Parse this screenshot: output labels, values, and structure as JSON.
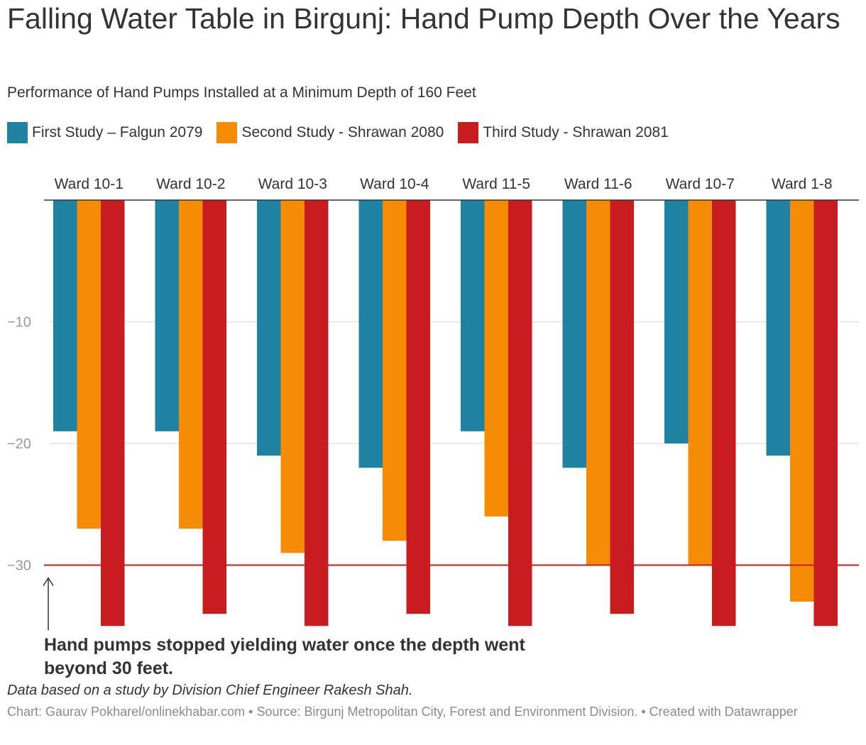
{
  "header": {
    "title": "Falling Water Table in Birgunj: Hand Pump Depth Over the Years",
    "subtitle": "Performance of Hand Pumps Installed at a Minimum Depth of 160 Feet"
  },
  "legend": [
    {
      "label": "First Study – Falgun 2079",
      "color": "#1f82a3"
    },
    {
      "label": "Second Study - Shrawan 2080",
      "color": "#f68b05"
    },
    {
      "label": "Third Study - Shrawan 2081",
      "color": "#c91c1f"
    }
  ],
  "chart_data": {
    "type": "bar",
    "categories": [
      "Ward 10-1",
      "Ward 10-2",
      "Ward 10-3",
      "Ward 10-4",
      "Ward 11-5",
      "Ward 11-6",
      "Ward 10-7",
      "Ward 1-8"
    ],
    "series": [
      {
        "name": "First Study – Falgun 2079",
        "color": "#1f82a3",
        "values": [
          -19,
          -19,
          -21,
          -22,
          -19,
          -22,
          -20,
          -21
        ]
      },
      {
        "name": "Second Study - Shrawan 2080",
        "color": "#f68b05",
        "values": [
          -27,
          -27,
          -29,
          -28,
          -26,
          -30,
          -30,
          -33
        ]
      },
      {
        "name": "Third Study - Shrawan 2081",
        "color": "#c91c1f",
        "values": [
          -35,
          -34,
          -35,
          -34,
          -35,
          -34,
          -35,
          -35
        ]
      }
    ],
    "ylim": [
      -35,
      0
    ],
    "yticks": [
      -10,
      -20,
      -30
    ],
    "ytick_labels": [
      "−10",
      "−20",
      "−30"
    ],
    "reference_line": {
      "value": -30,
      "color": "#c91c1f"
    },
    "grid": true,
    "category_labels_position": "top",
    "annotation": "Hand pumps stopped yielding water once the depth went beyond 30 feet."
  },
  "notes": {
    "intro": "Data based on a study by Division Chief Engineer Rakesh Shah.",
    "footer": "Chart: Gaurav Pokharel/onlinekhabar.com • Source: Birgunj Metropolitan City, Forest and Environment Division. • Created with Datawrapper"
  }
}
